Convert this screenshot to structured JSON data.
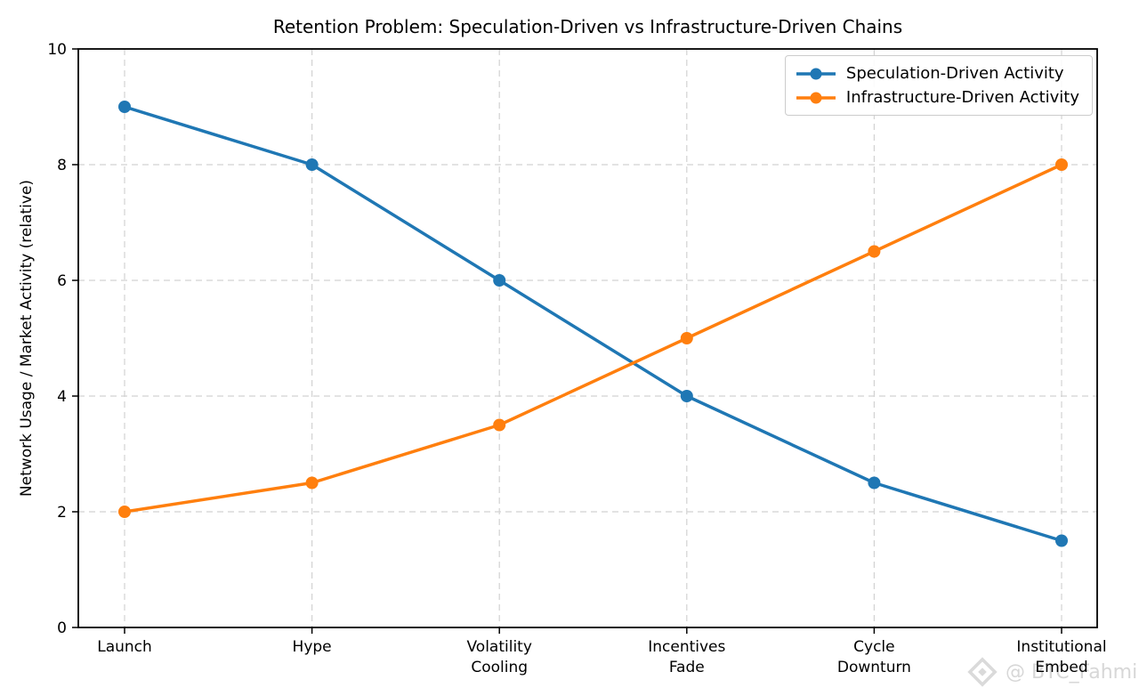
{
  "watermark": {
    "text": "@ BTC_Fahmi"
  },
  "chart_data": {
    "type": "line",
    "title": "Retention Problem: Speculation-Driven vs Infrastructure-Driven Chains",
    "xlabel": "",
    "ylabel": "Network Usage / Market Activity (relative)",
    "categories": [
      "Launch",
      "Hype",
      "Volatility\nCooling",
      "Incentives\nFade",
      "Cycle\nDownturn",
      "Institutional\nEmbed"
    ],
    "series": [
      {
        "name": "Speculation-Driven Activity",
        "color": "#1f77b4",
        "values": [
          9,
          8,
          6,
          4,
          2.5,
          1.5
        ]
      },
      {
        "name": "Infrastructure-Driven Activity",
        "color": "#ff7f0e",
        "values": [
          2,
          2.5,
          3.5,
          5,
          6.5,
          8
        ]
      }
    ],
    "ylim": [
      0,
      10
    ],
    "yticks": [
      0,
      2,
      4,
      6,
      8,
      10
    ],
    "grid": true,
    "grid_style": "dashed",
    "legend_position": "upper right"
  }
}
